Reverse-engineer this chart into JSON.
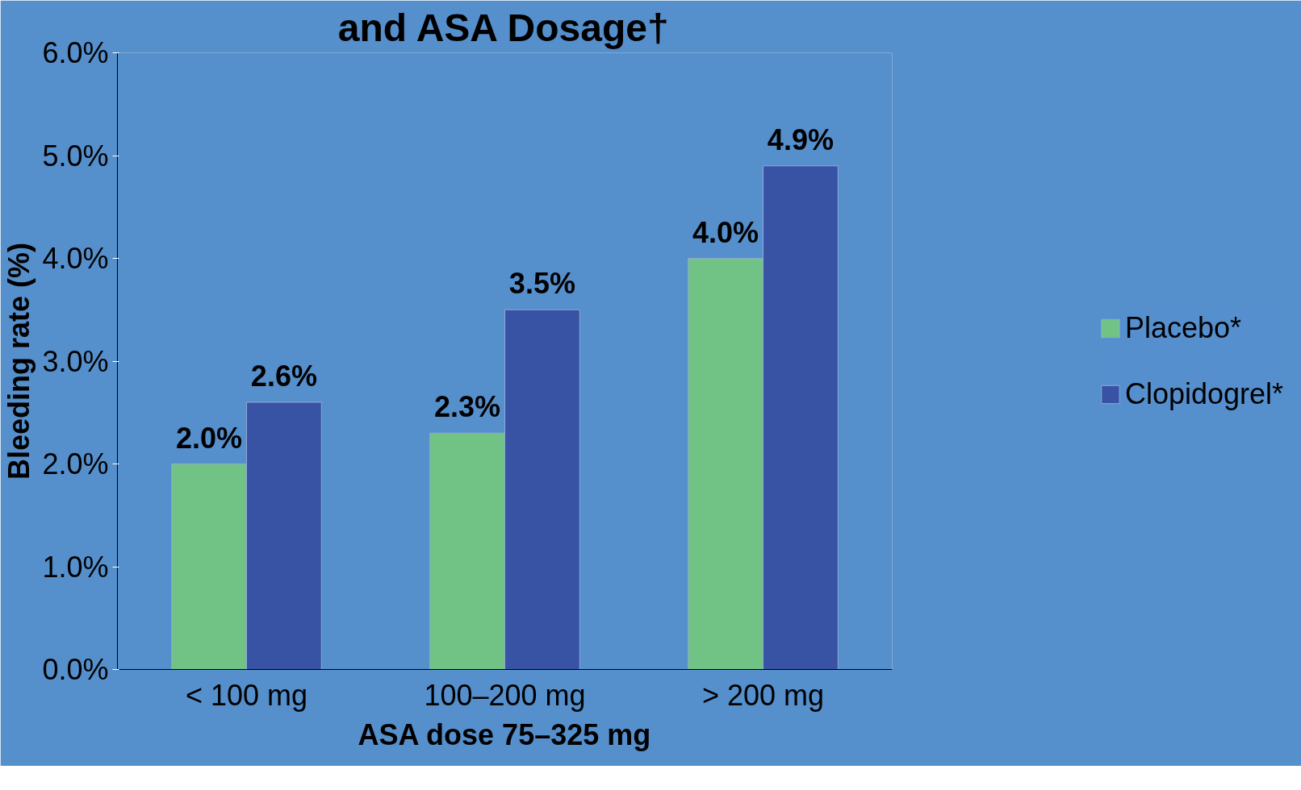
{
  "chart_data": {
    "type": "bar",
    "title": "and ASA Dosage†",
    "xlabel": "ASA dose 75–325 mg",
    "ylabel": "Bleeding rate (%)",
    "categories": [
      "< 100 mg",
      "100–200 mg",
      "> 200 mg"
    ],
    "series": [
      {
        "name": "Placebo*",
        "color": "#70c385",
        "values": [
          2.0,
          2.3,
          4.0
        ],
        "value_labels": [
          "2.0%",
          "2.3%",
          "4.0%"
        ]
      },
      {
        "name": "Clopidogrel*",
        "color": "#3853a4",
        "values": [
          2.6,
          3.5,
          4.9
        ],
        "value_labels": [
          "2.6%",
          "3.5%",
          "4.9%"
        ]
      }
    ],
    "ylim": [
      0,
      6
    ],
    "yticks": [
      {
        "value": 0,
        "label": "0.0%"
      },
      {
        "value": 1,
        "label": "1.0%"
      },
      {
        "value": 2,
        "label": "2.0%"
      },
      {
        "value": 3,
        "label": "3.0%"
      },
      {
        "value": 4,
        "label": "4.0%"
      },
      {
        "value": 5,
        "label": "5.0%"
      },
      {
        "value": 6,
        "label": "6.0%"
      }
    ],
    "grid": false,
    "legend": "right"
  }
}
